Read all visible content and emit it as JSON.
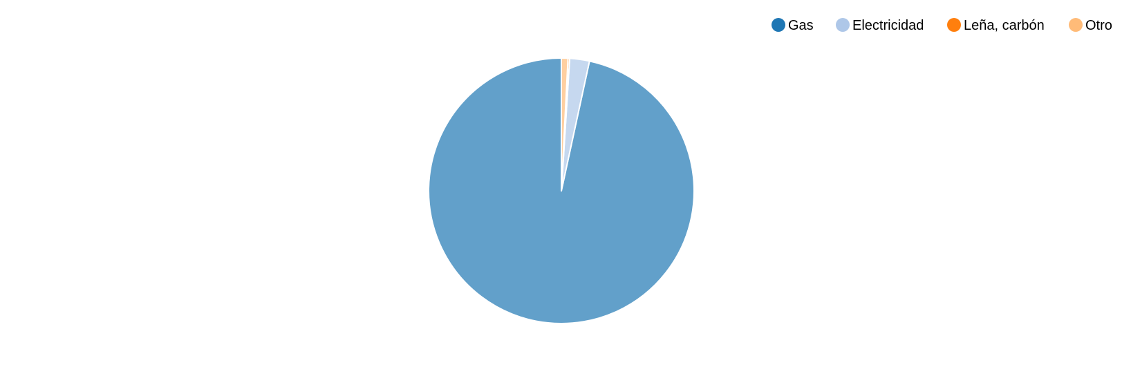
{
  "chart_data": {
    "type": "pie",
    "title": "",
    "legend_position": "top-right",
    "unit": "%",
    "series": [
      {
        "name": "Gas",
        "value": 96.6,
        "color": "#1f77b4"
      },
      {
        "name": "Electricidad",
        "value": 2.4,
        "color": "#aec7e8"
      },
      {
        "name": "Leña, carbón",
        "value": 0.2,
        "color": "#ff7f0e"
      },
      {
        "name": "Otro",
        "value": 0.8,
        "color": "#ffbb78"
      }
    ]
  }
}
